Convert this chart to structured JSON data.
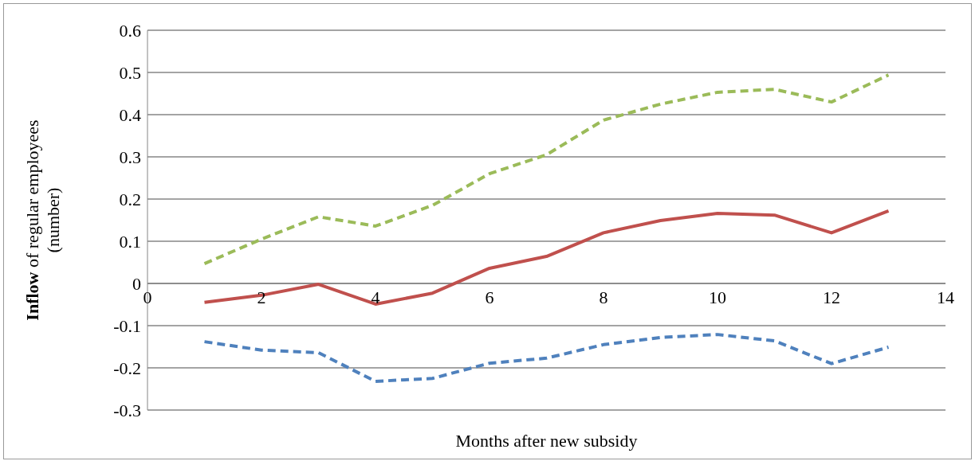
{
  "chart_data": {
    "type": "line",
    "xlabel": "Months after new subsidy",
    "ylabel": "Inflow of regular employees (number)",
    "x": [
      1,
      2,
      3,
      4,
      5,
      6,
      7,
      8,
      9,
      10,
      11,
      12,
      13
    ],
    "series": [
      {
        "color": "#9bbb59",
        "line_style": "dashed",
        "values": [
          0.047,
          0.105,
          0.158,
          0.136,
          0.185,
          0.26,
          0.305,
          0.387,
          0.425,
          0.453,
          0.46,
          0.43,
          0.494
        ]
      },
      {
        "color": "#c0504d",
        "line_style": "solid",
        "values": [
          -0.045,
          -0.028,
          -0.002,
          -0.049,
          -0.023,
          0.036,
          0.064,
          0.12,
          0.149,
          0.166,
          0.162,
          0.12,
          0.172
        ]
      },
      {
        "color": "#4f81bd",
        "line_style": "dashed",
        "values": [
          -0.138,
          -0.158,
          -0.164,
          -0.232,
          -0.225,
          -0.189,
          -0.177,
          -0.145,
          -0.128,
          -0.121,
          -0.136,
          -0.19,
          -0.151
        ]
      }
    ],
    "xlim": [
      0,
      14
    ],
    "xticks": [
      0,
      2,
      4,
      6,
      8,
      10,
      12,
      14
    ],
    "ylim": [
      -0.3,
      0.6
    ],
    "yticks": [
      -0.3,
      -0.2,
      -0.1,
      0,
      0.1,
      0.2,
      0.3,
      0.4,
      0.5,
      0.6
    ],
    "grid": "y",
    "marker": "none"
  }
}
